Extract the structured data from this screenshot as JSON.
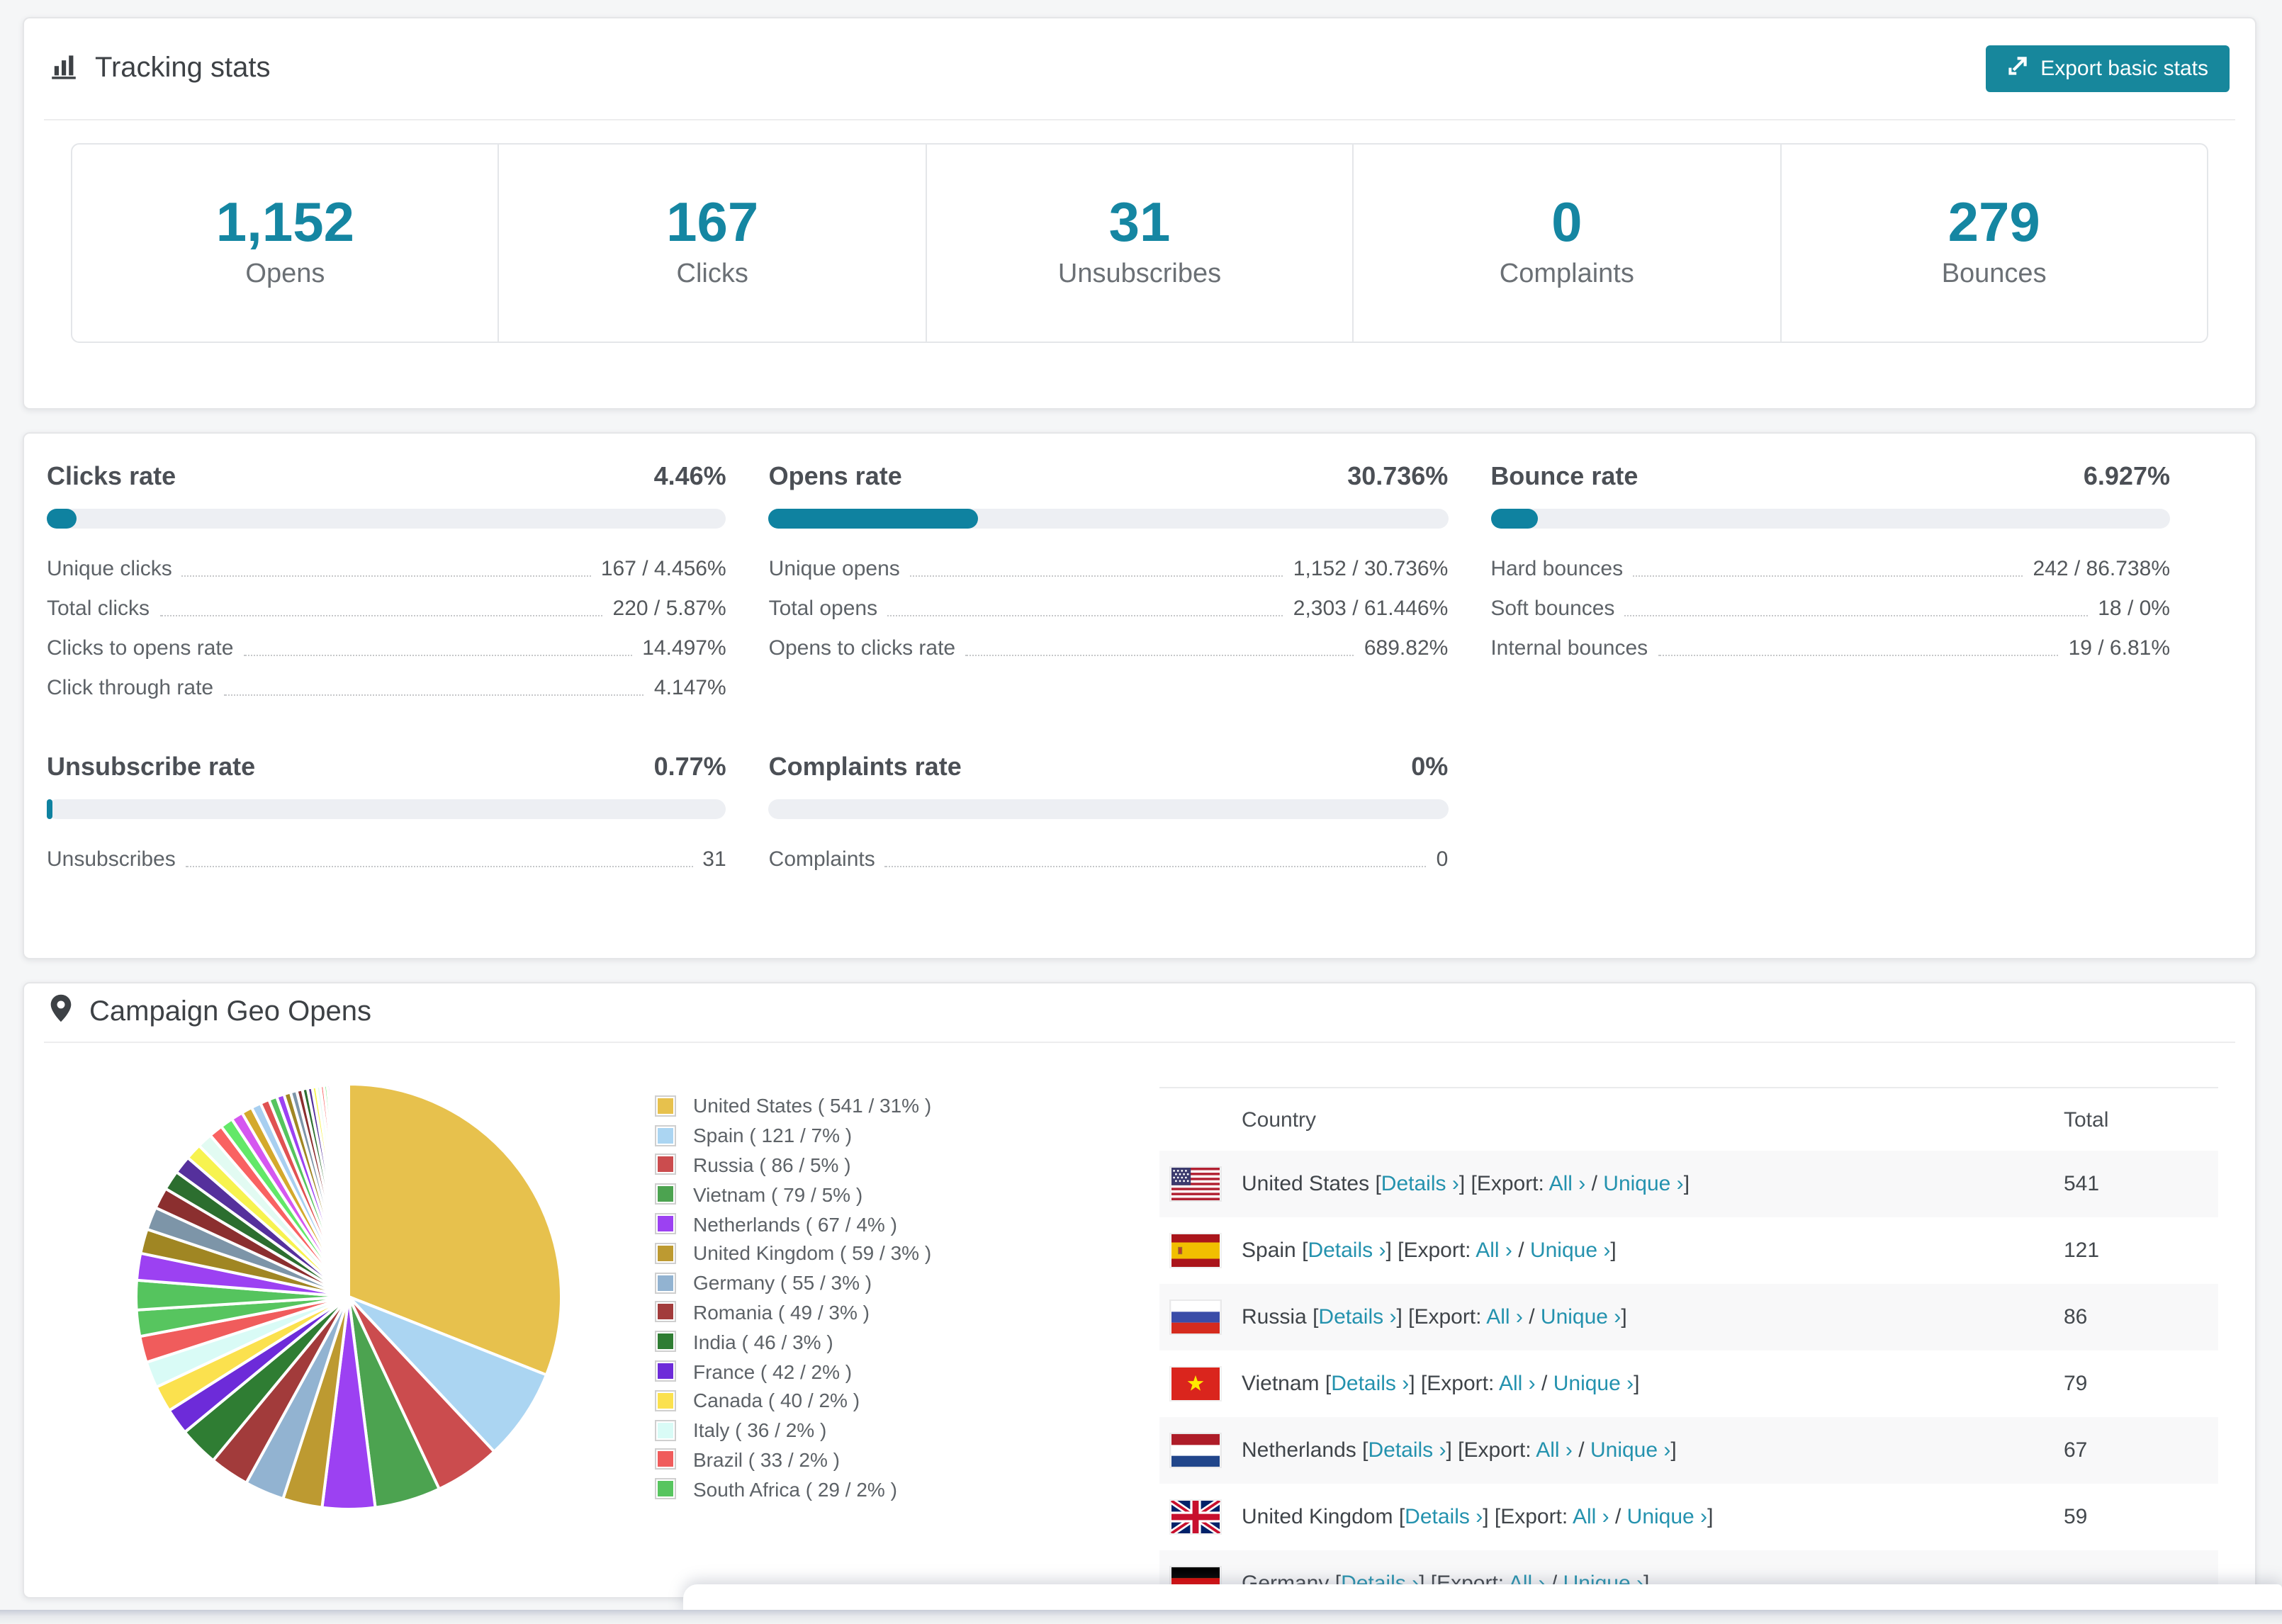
{
  "colors": {
    "accent": "#1586A2",
    "bar_fill": "#0F82A0",
    "button_bg": "#17879C",
    "link": "#2492AE",
    "bar_track": "#EDEFF3",
    "page_bg": "#F5F6F7",
    "row_shade": "#F8F8F9"
  },
  "tracking": {
    "title": "Tracking stats",
    "export_button": "Export basic stats",
    "boxes": [
      {
        "value": "1,152",
        "label": "Opens"
      },
      {
        "value": "167",
        "label": "Clicks"
      },
      {
        "value": "31",
        "label": "Unsubscribes"
      },
      {
        "value": "0",
        "label": "Complaints"
      },
      {
        "value": "279",
        "label": "Bounces"
      }
    ]
  },
  "rates": [
    {
      "title": "Clicks rate",
      "value": "4.46%",
      "bar_pct": 4.46,
      "rows": [
        {
          "label": "Unique clicks",
          "value": "167 / 4.456%"
        },
        {
          "label": "Total clicks",
          "value": "220 / 5.87%"
        },
        {
          "label": "Clicks to opens rate",
          "value": "14.497%"
        },
        {
          "label": "Click through rate",
          "value": "4.147%"
        }
      ]
    },
    {
      "title": "Opens rate",
      "value": "30.736%",
      "bar_pct": 30.736,
      "rows": [
        {
          "label": "Unique opens",
          "value": "1,152 / 30.736%"
        },
        {
          "label": "Total opens",
          "value": "2,303 / 61.446%"
        },
        {
          "label": "Opens to clicks rate",
          "value": "689.82%"
        }
      ]
    },
    {
      "title": "Bounce rate",
      "value": "6.927%",
      "bar_pct": 6.927,
      "rows": [
        {
          "label": "Hard bounces",
          "value": "242 / 86.738%"
        },
        {
          "label": "Soft bounces",
          "value": "18 / 0%"
        },
        {
          "label": "Internal bounces",
          "value": "19 / 6.81%"
        }
      ]
    },
    {
      "title": "Unsubscribe rate",
      "value": "0.77%",
      "bar_pct": 0.77,
      "rows": [
        {
          "label": "Unsubscribes",
          "value": "31"
        }
      ]
    },
    {
      "title": "Complaints rate",
      "value": "0%",
      "bar_pct": 0,
      "rows": [
        {
          "label": "Complaints",
          "value": "0"
        }
      ]
    }
  ],
  "geo": {
    "title": "Campaign Geo Opens",
    "table": {
      "headers": [
        "Country",
        "Total"
      ],
      "links": {
        "details": "Details",
        "export": "Export:",
        "all": "All",
        "unique": "Unique",
        "chevron": "›",
        "bracket_open": "[",
        "bracket_close": "]",
        "slash": "/"
      },
      "rows": [
        {
          "flag": "us",
          "name": "United States",
          "total": "541"
        },
        {
          "flag": "es",
          "name": "Spain",
          "total": "121"
        },
        {
          "flag": "ru",
          "name": "Russia",
          "total": "86"
        },
        {
          "flag": "vn",
          "name": "Vietnam",
          "total": "79"
        },
        {
          "flag": "nl",
          "name": "Netherlands",
          "total": "67"
        },
        {
          "flag": "gb",
          "name": "United Kingdom",
          "total": "59"
        },
        {
          "flag": "de",
          "name": "Germany",
          "total": ""
        }
      ]
    }
  },
  "chart_data": {
    "type": "pie",
    "title": "Campaign Geo Opens",
    "unit": "opens",
    "legend_position": "right",
    "start_angle_deg": 0,
    "direction": "clockwise",
    "slices": [
      {
        "name": "United States",
        "value": 541,
        "pct": 31,
        "color": "#E7C14D"
      },
      {
        "name": "Spain",
        "value": 121,
        "pct": 7,
        "color": "#ABD5F2"
      },
      {
        "name": "Russia",
        "value": 86,
        "pct": 5,
        "color": "#CB4C4E"
      },
      {
        "name": "Vietnam",
        "value": 79,
        "pct": 5,
        "color": "#4CA350"
      },
      {
        "name": "Netherlands",
        "value": 67,
        "pct": 4,
        "color": "#9C41F2"
      },
      {
        "name": "United Kingdom",
        "value": 59,
        "pct": 3,
        "color": "#BD9A31"
      },
      {
        "name": "Germany",
        "value": 55,
        "pct": 3,
        "color": "#92B3D1"
      },
      {
        "name": "Romania",
        "value": 49,
        "pct": 3,
        "color": "#A23B3B"
      },
      {
        "name": "India",
        "value": 46,
        "pct": 3,
        "color": "#2F7D33"
      },
      {
        "name": "France",
        "value": 42,
        "pct": 2,
        "color": "#6D2BD9"
      },
      {
        "name": "Canada",
        "value": 40,
        "pct": 2,
        "color": "#FBE14E"
      },
      {
        "name": "Italy",
        "value": 36,
        "pct": 2,
        "color": "#D9FBF6"
      },
      {
        "name": "Brazil",
        "value": 33,
        "pct": 2,
        "color": "#F05C5C"
      },
      {
        "name": "South Africa",
        "value": 29,
        "pct": 2,
        "color": "#57C55F"
      }
    ],
    "legend_format": {
      "prefix": " ( ",
      "mid": " / ",
      "suffix": "% )"
    },
    "other_slices": [
      1.8,
      1.65,
      1.5,
      1.4,
      1.3,
      1.2,
      1.1,
      1.0,
      0.92,
      0.85,
      0.78,
      0.72,
      0.66,
      0.6,
      0.55,
      0.5,
      0.46,
      0.42,
      0.38,
      0.35,
      0.32,
      0.29,
      0.26,
      0.24,
      0.22,
      0.2,
      0.18,
      0.16,
      0.14,
      0.13,
      0.11,
      0.1,
      0.09,
      0.08,
      0.07,
      0.06,
      0.05,
      0.05,
      0.04,
      0.04
    ],
    "other_palette": [
      "#55C45E",
      "#9C41F2",
      "#A08623",
      "#7D95A8",
      "#8B2F2F",
      "#2C6E2F",
      "#55309C",
      "#F7F34F",
      "#E2FBF2",
      "#F96262",
      "#63E868",
      "#D557F0",
      "#D4A92C",
      "#A8CFF0",
      "#E05252"
    ]
  }
}
